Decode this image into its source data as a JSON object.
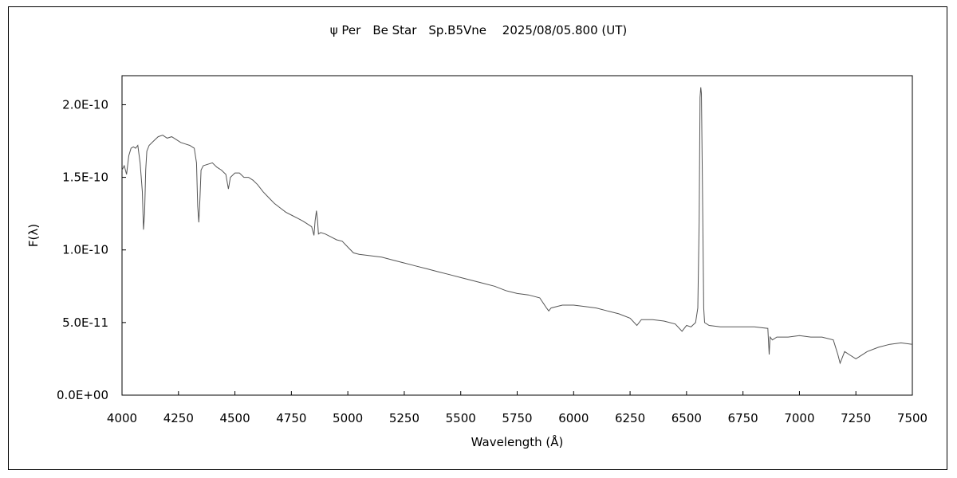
{
  "chart_data": {
    "type": "line",
    "title": "ψ Per　Be Star　Sp.B5Vne　 2025/08/05.800 (UT)",
    "xlabel": "Wavelength (Å)",
    "ylabel": "F(λ)",
    "xlim": [
      4000,
      7500
    ],
    "ylim": [
      0,
      2.2e-10
    ],
    "x_ticks": [
      4000,
      4250,
      4500,
      4750,
      5000,
      5250,
      5500,
      5750,
      6000,
      6250,
      6500,
      6750,
      7000,
      7250,
      7500
    ],
    "x_tick_labels": [
      "4000",
      "4250",
      "4500",
      "4750",
      "5000",
      "5250",
      "5500",
      "5750",
      "6000",
      "6250",
      "6500",
      "6750",
      "7000",
      "7250",
      "7500"
    ],
    "y_ticks": [
      0,
      5e-11,
      1e-10,
      1.5e-10,
      2e-10
    ],
    "y_tick_labels": [
      "0.0E+00",
      "5.0E-11",
      "1.0E-10",
      "1.5E-10",
      "2.0E-10"
    ],
    "grid": false,
    "line_color": "#555555",
    "series": [
      {
        "x": [
          4000,
          4010,
          4020,
          4030,
          4040,
          4050,
          4060,
          4070,
          4080,
          4090,
          4095,
          4100,
          4105,
          4110,
          4120,
          4140,
          4160,
          4180,
          4200,
          4220,
          4240,
          4260,
          4280,
          4300,
          4320,
          4330,
          4335,
          4340,
          4345,
          4350,
          4360,
          4380,
          4400,
          4420,
          4440,
          4460,
          4471,
          4480,
          4500,
          4520,
          4540,
          4560,
          4580,
          4600,
          4625,
          4650,
          4675,
          4700,
          4725,
          4750,
          4775,
          4800,
          4820,
          4840,
          4850,
          4855,
          4861,
          4866,
          4870,
          4880,
          4900,
          4925,
          4950,
          4975,
          5000,
          5025,
          5050,
          5100,
          5150,
          5200,
          5250,
          5300,
          5350,
          5400,
          5450,
          5500,
          5550,
          5600,
          5650,
          5700,
          5750,
          5800,
          5850,
          5880,
          5890,
          5900,
          5950,
          6000,
          6050,
          6100,
          6150,
          6200,
          6250,
          6280,
          6300,
          6350,
          6400,
          6450,
          6480,
          6500,
          6520,
          6540,
          6550,
          6556,
          6560,
          6563,
          6566,
          6570,
          6576,
          6580,
          6600,
          6650,
          6700,
          6750,
          6800,
          6860,
          6866,
          6870,
          6880,
          6900,
          6950,
          7000,
          7050,
          7100,
          7150,
          7170,
          7180,
          7200,
          7220,
          7250,
          7270,
          7300,
          7350,
          7400,
          7450,
          7500
        ],
        "y": [
          1.55e-10,
          1.58e-10,
          1.52e-10,
          1.65e-10,
          1.7e-10,
          1.71e-10,
          1.7e-10,
          1.72e-10,
          1.6e-10,
          1.4e-10,
          1.14e-10,
          1.25e-10,
          1.55e-10,
          1.68e-10,
          1.72e-10,
          1.75e-10,
          1.78e-10,
          1.79e-10,
          1.77e-10,
          1.78e-10,
          1.76e-10,
          1.74e-10,
          1.73e-10,
          1.72e-10,
          1.7e-10,
          1.6e-10,
          1.3e-10,
          1.19e-10,
          1.35e-10,
          1.55e-10,
          1.58e-10,
          1.59e-10,
          1.6e-10,
          1.57e-10,
          1.55e-10,
          1.52e-10,
          1.42e-10,
          1.5e-10,
          1.53e-10,
          1.53e-10,
          1.5e-10,
          1.5e-10,
          1.48e-10,
          1.45e-10,
          1.4e-10,
          1.36e-10,
          1.32e-10,
          1.29e-10,
          1.26e-10,
          1.24e-10,
          1.22e-10,
          1.2e-10,
          1.18e-10,
          1.16e-10,
          1.1e-10,
          1.2e-10,
          1.27e-10,
          1.2e-10,
          1.11e-10,
          1.12e-10,
          1.11e-10,
          1.09e-10,
          1.07e-10,
          1.06e-10,
          1.02e-10,
          9.8e-11,
          9.7e-11,
          9.6e-11,
          9.5e-11,
          9.3e-11,
          9.1e-11,
          8.9e-11,
          8.7e-11,
          8.5e-11,
          8.3e-11,
          8.1e-11,
          7.9e-11,
          7.7e-11,
          7.5e-11,
          7.2e-11,
          7e-11,
          6.9e-11,
          6.7e-11,
          6e-11,
          5.8e-11,
          6e-11,
          6.2e-11,
          6.2e-11,
          6.1e-11,
          6e-11,
          5.8e-11,
          5.6e-11,
          5.3e-11,
          4.8e-11,
          5.2e-11,
          5.2e-11,
          5.1e-11,
          4.9e-11,
          4.4e-11,
          4.8e-11,
          4.7e-11,
          5e-11,
          6e-11,
          1.2e-10,
          2.05e-10,
          2.12e-10,
          2.08e-10,
          1.5e-10,
          6e-11,
          5e-11,
          4.8e-11,
          4.7e-11,
          4.7e-11,
          4.7e-11,
          4.7e-11,
          4.6e-11,
          2.8e-11,
          4e-11,
          3.8e-11,
          4e-11,
          4e-11,
          4.1e-11,
          4e-11,
          4e-11,
          3.8e-11,
          2.8e-11,
          2.2e-11,
          3e-11,
          2.8e-11,
          2.5e-11,
          2.7e-11,
          3e-11,
          3.3e-11,
          3.5e-11,
          3.6e-11,
          3.5e-11
        ]
      }
    ]
  }
}
